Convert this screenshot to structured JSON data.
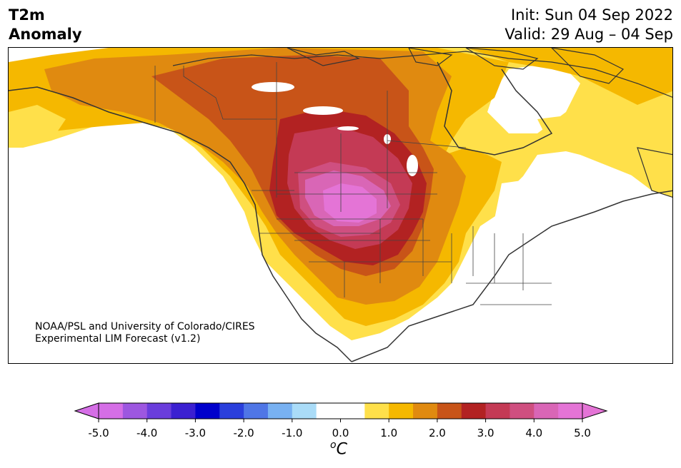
{
  "title": {
    "left_line1": "T2m",
    "left_line2": "Anomaly",
    "init": "Init: Sun 04 Sep 2022",
    "valid": "Valid: 29 Aug – 04 Sep"
  },
  "credit": {
    "line1": "NOAA/PSL and University of Colorado/CIRES",
    "line2": "Experimental LIM Forecast (v1.2)"
  },
  "colorbar": {
    "unit": "oC",
    "unit_base": "C",
    "unit_sup": "o",
    "ticks": [
      "-5.0",
      "-4.0",
      "-3.0",
      "-2.0",
      "-1.0",
      "0.0",
      "1.0",
      "2.0",
      "3.0",
      "4.0",
      "5.0"
    ],
    "colors": [
      "#d56ee6",
      "#9d57e0",
      "#6a3ddc",
      "#3b20d1",
      "#0000cc",
      "#2a3fdc",
      "#4f76e6",
      "#78b1f2",
      "#aadcf8",
      "#ffffff",
      "#ffffff",
      "#ffe04a",
      "#f5b800",
      "#e08a10",
      "#c85418",
      "#b22222",
      "#c43a55",
      "#cf4f80",
      "#d966b6",
      "#e474d6"
    ],
    "under_color": "#d56ee6",
    "over_color": "#e474d6"
  },
  "map": {
    "region": "North America",
    "variable": "2m temperature anomaly",
    "peak_region": "Northern Rockies / High Plains",
    "peak_color": "#e474d6"
  }
}
